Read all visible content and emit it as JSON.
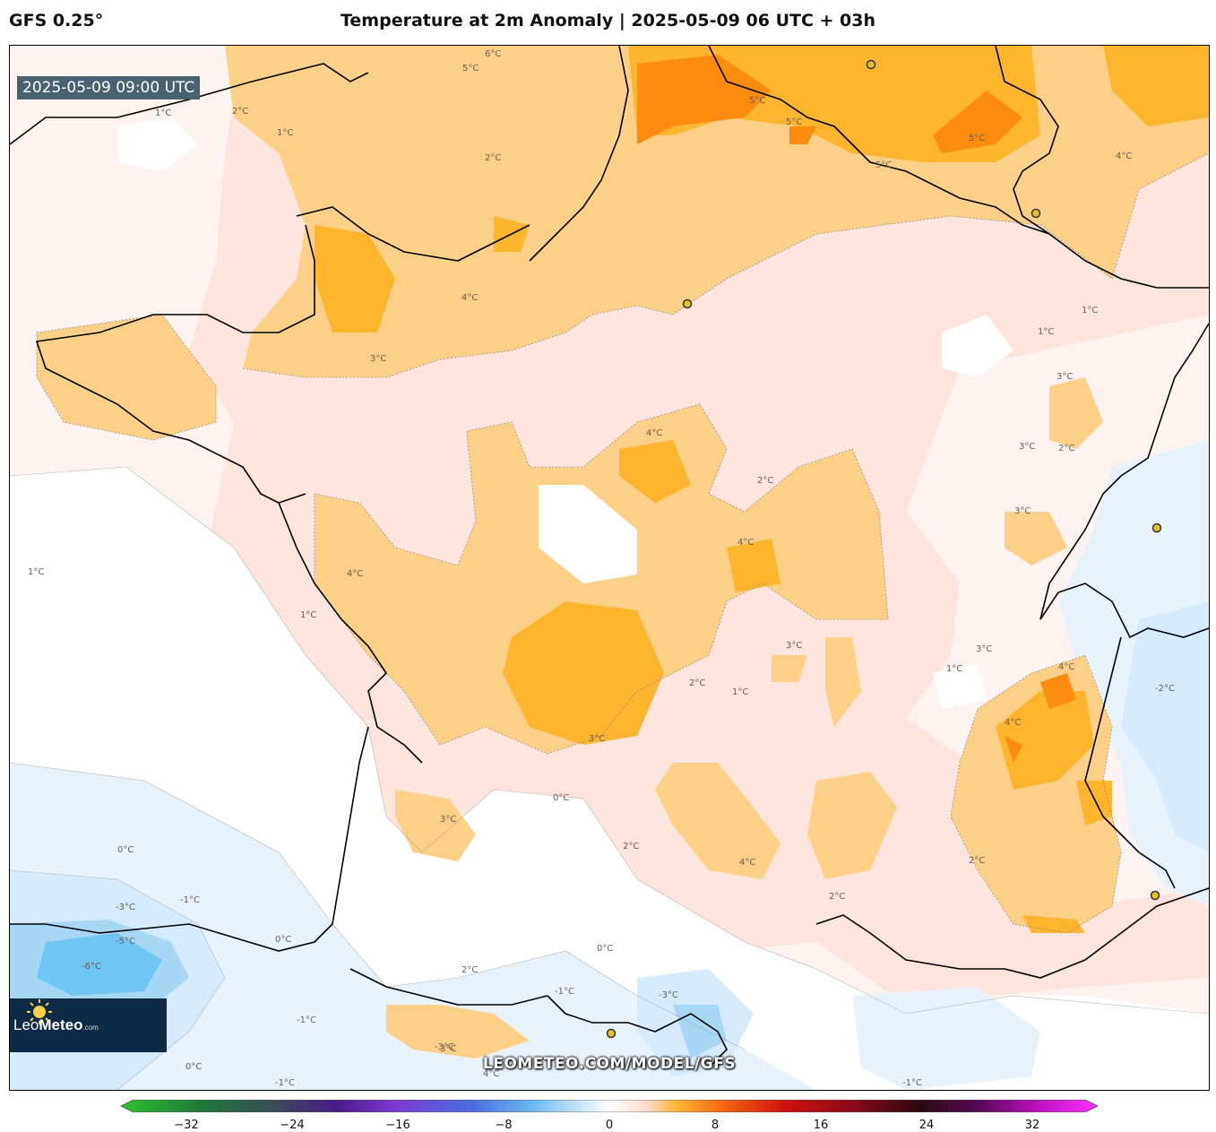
{
  "header": {
    "model": "GFS 0.25°",
    "title": "Temperature at 2m Anomaly | 2025-05-09 06 UTC + 03h"
  },
  "map": {
    "valid_time": "2025-05-09 09:00 UTC",
    "watermark": "LEOMETEO.COM/MODEL/GFS",
    "logo": {
      "brand_light": "Leo",
      "brand_bold": "Meteo",
      "brand_suffix": ".com"
    },
    "contour_labels": [
      "6°C",
      "5°C",
      "5°C",
      "5°C",
      "5°C",
      "5°C",
      "4°C",
      "4°C",
      "4°C",
      "4°C",
      "4°C",
      "4°C",
      "4°C",
      "4°C",
      "4°C",
      "3°C",
      "3°C",
      "3°C",
      "3°C",
      "3°C",
      "3°C",
      "3°C",
      "3°C",
      "3°C",
      "2°C",
      "2°C",
      "2°C",
      "2°C",
      "2°C",
      "2°C",
      "2°C",
      "2°C",
      "2°C",
      "1°C",
      "1°C",
      "1°C",
      "1°C",
      "1°C",
      "1°C",
      "1°C",
      "1°C",
      "0°C",
      "0°C",
      "0°C",
      "0°C",
      "0°C",
      "-1°C",
      "-1°C",
      "-1°C",
      "-1°C",
      "-1°C",
      "-2°C",
      "-3°C",
      "-3°C",
      "-3°C",
      "-5°C",
      "-6°C"
    ],
    "fill_colors": {
      "neg6": "#6fc6f2",
      "neg4": "#a6d8f5",
      "neg2": "#d5eafa",
      "neg1": "#e8f2fb",
      "zero": "#ffffff",
      "pos1": "#fdf3f0",
      "pos2": "#fde4dc",
      "pos3": "#fecf87",
      "pos4": "#fdb52e",
      "pos5": "#fc8c0e"
    },
    "city_marker_color": "#e6c22a"
  },
  "colorbar": {
    "ticks": [
      "−32",
      "−24",
      "−16",
      "−8",
      "0",
      "8",
      "16",
      "24",
      "32"
    ],
    "range": [
      -36,
      36
    ]
  }
}
